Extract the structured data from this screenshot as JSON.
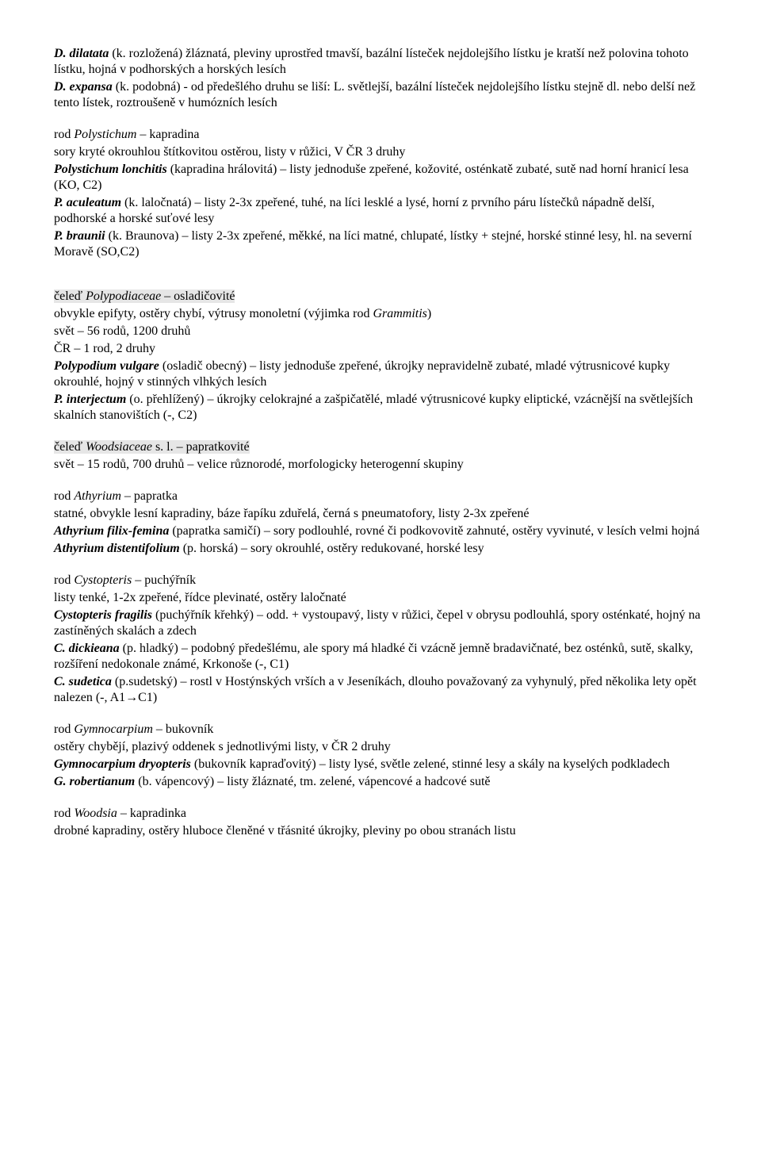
{
  "p1": {
    "b1": "D. dilatata",
    "t1": " (k. rozložená) žláznatá, pleviny uprostřed tmavší, bazální lísteček nejdolejšího lístku je kratší než polovina tohoto lístku, hojná v podhorských a horských lesích"
  },
  "p2": {
    "b1": "D. expansa",
    "t1": " (k. podobná) - od předešlého druhu se liší: L. světlejší, bazální lísteček nejdolejšího lístku stejně dl. nebo delší než tento lístek, roztroušeně v humózních lesích"
  },
  "p3": {
    "t1": "rod ",
    "i1": "Polystichum",
    "t2": " – kapradina"
  },
  "p4": "sory kryté okrouhlou štítkovitou ostěrou, listy v růžici, V ČR 3 druhy",
  "p5": {
    "b1": "Polystichum lonchitis",
    "t1": " (kapradina hrálovitá) – listy jednoduše zpeřené, kožovité, osténkatě zubaté, sutě nad horní hranicí lesa (KO, C2)"
  },
  "p6": {
    "b1": "P. aculeatum",
    "t1": " (k. laločnatá) – listy 2-3x zpeřené, tuhé, na líci lesklé a lysé, horní z prvního páru lístečků nápadně delší, podhorské a horské suťové lesy"
  },
  "p7": {
    "b1": "P. braunii",
    "t1": " (k. Braunova) – listy 2-3x zpeřené, měkké, na líci matné, chlupaté, lístky + stejné, horské stinné lesy, hl. na severní Moravě (SO,C2)"
  },
  "p8": {
    "t1": "čeleď ",
    "i1": "Polypodiaceae",
    "t2": " – osladičovité"
  },
  "p9": {
    "t1": "obvykle epifyty, ostěry chybí, výtrusy monoletní (výjimka rod ",
    "i1": "Grammitis",
    "t2": ")"
  },
  "p10": "svět – 56 rodů, 1200 druhů",
  "p11": "ČR – 1 rod, 2 druhy",
  "p12": {
    "b1": "Polypodium vulgare",
    "t1": " (osladič obecný) – listy jednoduše zpeřené, úkrojky nepravidelně zubaté, mladé výtrusnicové kupky okrouhlé, hojný v stinných vlhkých lesích"
  },
  "p13": {
    "b1": "P. interjectum",
    "t1": " (o. přehlížený) – úkrojky celokrajné a zašpičatělé, mladé výtrusnicové kupky eliptické, vzácnější na světlejších skalních stanovištích (-, C2)"
  },
  "p14": {
    "t1": "čeleď ",
    "i1": "Woodsiaceae",
    "t2": " s. l. – papratkovité"
  },
  "p15": "svět – 15 rodů, 700 druhů – velice různorodé, morfologicky heterogenní skupiny",
  "p16": {
    "t1": "rod ",
    "i1": "Athyrium",
    "t2": " – papratka"
  },
  "p17": "statné, obvykle lesní kapradiny, báze řapíku zduřelá, černá s pneumatofory, listy 2-3x zpeřené",
  "p18": {
    "b1": "Athyrium filix-femina",
    "t1": " (papratka samičí) – sory podlouhlé, rovné či podkovovitě zahnuté, ostěry vyvinuté, v lesích velmi hojná"
  },
  "p19": {
    "b1": "Athyrium  distentifolium",
    "t1": " (p. horská) – sory okrouhlé, ostěry redukované, horské lesy"
  },
  "p20": {
    "t1": "rod ",
    "i1": "Cystopteris",
    "t2": " – puchýřník"
  },
  "p21": "listy  tenké, 1-2x zpeřené, řídce plevinaté, ostěry laločnaté",
  "p22": {
    "b1": "Cystopteris fragilis",
    "t1": " (puchýřník křehký) – odd. + vystoupavý, listy v růžici, čepel v obrysu podlouhlá, spory osténkaté, hojný na zastíněných skalách a zdech"
  },
  "p23": {
    "b1": "C. dickieana",
    "t1": " (p. hladký) – podobný předešlému, ale spory má hladké či vzácně jemně bradavičnaté, bez osténků, sutě, skalky, rozšíření nedokonale známé, Krkonoše (-, C1)"
  },
  "p24": {
    "b1": "C. sudetica",
    "t1": " (p.sudetský) – rostl v Hostýnských vrších a v Jeseníkách, dlouho považovaný za vyhynulý, před několika lety opět nalezen (-, A1→C1)"
  },
  "p25": {
    "t1": "rod ",
    "i1": "Gymnocarpium",
    "t2": " – bukovník"
  },
  "p26": "ostěry chybějí, plazivý oddenek s jednotlivými listy, v ČR 2 druhy",
  "p27": {
    "b1": "Gymnocarpium dryopteris",
    "t1": " (bukovník kapraďovitý) – listy lysé, světle zelené, stinné lesy a skály na kyselých podkladech"
  },
  "p28": {
    "b1": "G. robertianum",
    "t1": " (b. vápencový) – listy žláznaté, tm. zelené, vápencové a hadcové sutě"
  },
  "p29": {
    "t1": "rod ",
    "i1": "Woodsia",
    "t2": " – kapradinka"
  },
  "p30": "drobné kapradiny, ostěry hluboce členěné v třásnité úkrojky, pleviny po obou stranách listu"
}
